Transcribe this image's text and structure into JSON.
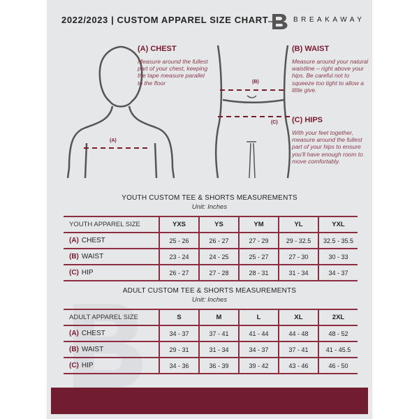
{
  "header": {
    "title": "2022/2023  |  CUSTOM APPAREL SIZE CHART",
    "brand": "BREAKAWAY",
    "logo_letter": "B"
  },
  "guides": {
    "chest": {
      "title": "(A) CHEST",
      "desc": "Measure around the fullest part of your chest, keeping the tape measure parallel to the floor",
      "marker": "(A)"
    },
    "waist": {
      "title": "(B) WAIST",
      "desc": "Measure around your natural waistline – right above your hips. Be careful not to squeeze too tight to allow a little give.",
      "marker": "(B)"
    },
    "hips": {
      "title": "(C) HIPS",
      "desc": "With your feet together, measure around the fullest part of your hips to ensure you'll have enough room to move comfortably.",
      "marker": "(C)"
    }
  },
  "youth": {
    "title": "YOUTH CUSTOM TEE & SHORTS MEASUREMENTS",
    "unit": "Unit: Inches",
    "header": "YOUTH APPAREL SIZE",
    "sizes": [
      "YXS",
      "YS",
      "YM",
      "YL",
      "YXL"
    ],
    "rows": [
      {
        "mark": "(A)",
        "label": "CHEST",
        "values": [
          "25 - 26",
          "26 - 27",
          "27 - 29",
          "29 - 32.5",
          "32.5 - 35.5"
        ]
      },
      {
        "mark": "(B)",
        "label": "WAIST",
        "values": [
          "23 - 24",
          "24 - 25",
          "25 - 27",
          "27 - 30",
          "30 - 33"
        ]
      },
      {
        "mark": "(C)",
        "label": "HIP",
        "values": [
          "26 - 27",
          "27 - 28",
          "28 - 31",
          "31 - 34",
          "34 - 37"
        ]
      }
    ]
  },
  "adult": {
    "title": "ADULT CUSTOM TEE & SHORTS MEASUREMENTS",
    "unit": "Unit: Inches",
    "header": "ADULT APPAREL SIZE",
    "sizes": [
      "S",
      "M",
      "L",
      "XL",
      "2XL"
    ],
    "rows": [
      {
        "mark": "(A)",
        "label": "CHEST",
        "values": [
          "34 - 37",
          "37 - 41",
          "41 - 44",
          "44 - 48",
          "48 - 52"
        ]
      },
      {
        "mark": "(B)",
        "label": "WAIST",
        "values": [
          "29 - 31",
          "31 - 34",
          "34 - 37",
          "37 - 41",
          "41 - 45.5"
        ]
      },
      {
        "mark": "(C)",
        "label": "HIP",
        "values": [
          "34 - 36",
          "36 - 39",
          "39 - 42",
          "43 - 46",
          "46 - 50"
        ]
      }
    ]
  },
  "colors": {
    "accent": "#721c2f",
    "panel": "#e6e7e9"
  }
}
